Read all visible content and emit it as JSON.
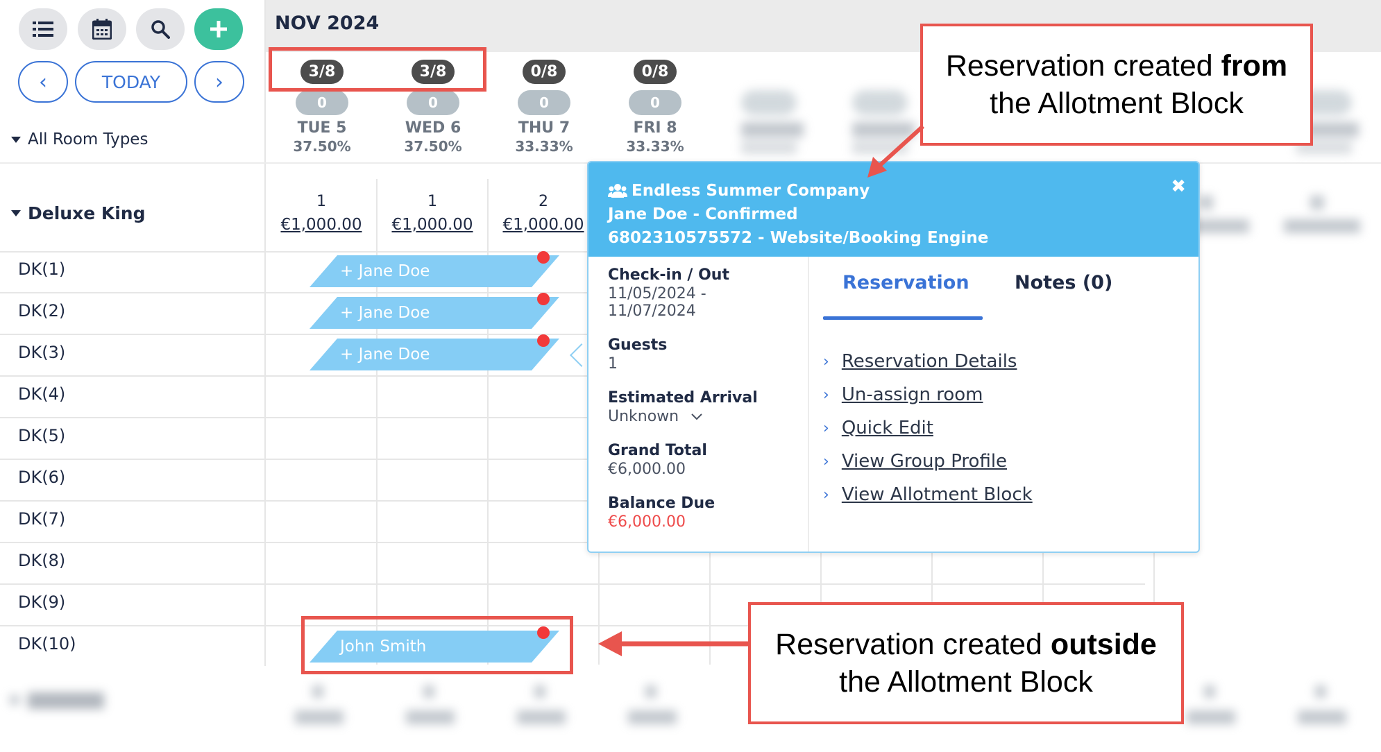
{
  "toolbar": {
    "list_icon": "list-icon",
    "calendar_icon": "calendar-icon",
    "search_icon": "search-icon",
    "add_icon": "plus-icon",
    "prev_label": "‹",
    "today_label": "TODAY",
    "next_label": "›",
    "room_filter": "All Room Types"
  },
  "calendar": {
    "month": "NOV 2024",
    "days": [
      {
        "availability": "3/8",
        "count": "0",
        "name": "TUE 5",
        "occupancy": "37.50%"
      },
      {
        "availability": "3/8",
        "count": "0",
        "name": "WED 6",
        "occupancy": "37.50%"
      },
      {
        "availability": "0/8",
        "count": "0",
        "name": "THU 7",
        "occupancy": "33.33%"
      },
      {
        "availability": "0/8",
        "count": "0",
        "name": "FRI 8",
        "occupancy": "33.33%"
      }
    ],
    "room_type": {
      "name": "Deluxe King",
      "cells": [
        {
          "count": "1",
          "price": "€1,000.00"
        },
        {
          "count": "1",
          "price": "€1,000.00"
        },
        {
          "count": "2",
          "price": "€1,000.00"
        }
      ]
    },
    "rooms": [
      "DK(1)",
      "DK(2)",
      "DK(3)",
      "DK(4)",
      "DK(5)",
      "DK(6)",
      "DK(7)",
      "DK(8)",
      "DK(9)",
      "DK(10)"
    ],
    "reservations": [
      {
        "label": "+ Jane Doe",
        "room": "DK(1)"
      },
      {
        "label": "+ Jane Doe",
        "room": "DK(2)"
      },
      {
        "label": "+ Jane Doe",
        "room": "DK(3)"
      },
      {
        "label": "John Smith",
        "room": "DK(10)"
      }
    ]
  },
  "popup": {
    "group_icon": "group-icon",
    "company": "Endless Summer Company",
    "guest_status": "Jane Doe - Confirmed",
    "reservation_source": "6802310575572 - Website/Booking Engine",
    "checkin_label": "Check-in / Out",
    "checkin_value": "11/05/2024 - 11/07/2024",
    "guests_label": "Guests",
    "guests_value": "1",
    "arrival_label": "Estimated Arrival",
    "arrival_value": "Unknown",
    "total_label": "Grand Total",
    "total_value": "€6,000.00",
    "balance_label": "Balance Due",
    "balance_value": "€6,000.00",
    "tab_reservation": "Reservation",
    "tab_notes": "Notes (0)",
    "links": [
      "Reservation Details",
      "Un-assign room",
      "Quick Edit",
      "View Group Profile",
      "View Allotment Block"
    ],
    "close_icon": "close-icon"
  },
  "annotations": {
    "from_prefix": "Reservation created ",
    "from_bold": "from",
    "from_suffix": "the Allotment Block",
    "outside_prefix": "Reservation created ",
    "outside_bold": "outside",
    "outside_suffix": "the Allotment Block",
    "accent": "#e8554e"
  }
}
